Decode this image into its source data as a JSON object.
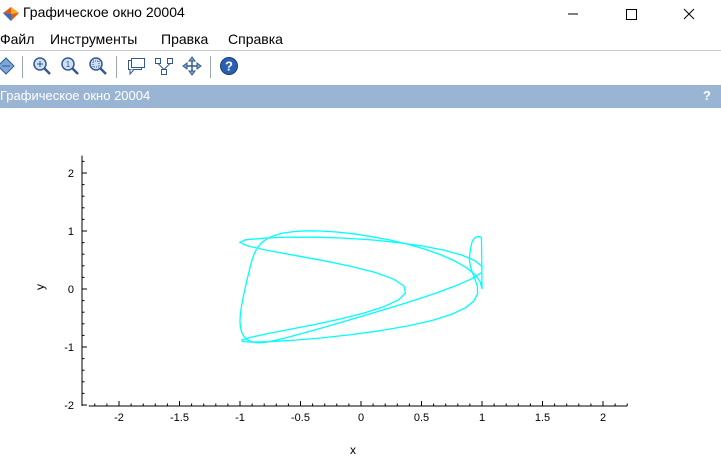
{
  "window": {
    "title": "Графическое окно 20004",
    "minimize_glyph": "—",
    "maximize_glyph": "□",
    "close_glyph": "✕"
  },
  "menu": {
    "items": [
      "Файл",
      "Инструменты",
      "Правка",
      "Справка"
    ]
  },
  "toolbar": {
    "buttons": [
      "rotate-icon",
      "zoom-in-icon",
      "zoom-out-icon",
      "zoom-area-icon",
      "datatip-icon",
      "edit-icon",
      "pan-icon",
      "help-icon"
    ]
  },
  "panel": {
    "title": "Графическое окно 20004",
    "help": "?"
  },
  "colors": {
    "curve": "#00ffff",
    "panel_bar": "#9ab5d3"
  },
  "chart_data": {
    "type": "line",
    "title": "",
    "xlabel": "x",
    "ylabel": "y",
    "xlim": [
      -2.2,
      2.2
    ],
    "ylim": [
      -2.1,
      2.3
    ],
    "xticks": [
      "-2",
      "-1.5",
      "-1",
      "-0.5",
      "0",
      "0.5",
      "1",
      "1.5",
      "2"
    ],
    "yticks": [
      "2",
      "1",
      "0",
      "-1",
      "-2"
    ],
    "grid": false,
    "series": [
      {
        "color": "#00ffff",
        "x": [
          1.0,
          0.985,
          0.941,
          0.871,
          0.776,
          0.661,
          0.53,
          0.387,
          0.238,
          0.087,
          -0.061,
          -0.203,
          -0.334,
          -0.453,
          -0.558,
          -0.647,
          -0.72,
          -0.778,
          -0.823,
          -0.856,
          -0.881,
          -0.899,
          -0.914,
          -0.928,
          -0.942,
          -0.956,
          -0.97,
          -0.982,
          -0.992,
          -0.998,
          -1.0,
          -0.996,
          -0.985,
          -0.968,
          -0.944,
          -0.913,
          -0.874,
          -0.826,
          -0.767,
          -0.694,
          -0.604,
          -0.496,
          -0.369,
          -0.225,
          -0.066,
          0.105,
          0.281,
          0.456,
          0.624,
          0.777,
          0.906,
          0.998,
          1.0,
          0.939,
          0.833,
          0.688,
          0.51,
          0.307,
          0.087,
          -0.141,
          -0.369,
          -0.587,
          -0.785,
          -0.955,
          -1.0,
          -0.941,
          -0.79,
          -0.575,
          -0.33,
          -0.09,
          0.118,
          0.27,
          0.356,
          0.368,
          0.309,
          0.187,
          0.016,
          -0.187,
          -0.403,
          -0.612,
          -0.79,
          -0.919,
          -0.985,
          -0.98,
          -0.904,
          -0.764,
          -0.572,
          -0.343,
          -0.096,
          0.152,
          0.384,
          0.586,
          0.748,
          0.864,
          0.933,
          0.963,
          0.962,
          0.943,
          0.921,
          0.903,
          0.896,
          0.899,
          0.905,
          0.912,
          0.919,
          0.931,
          0.948,
          0.967,
          0.985,
          0.996,
          1.0
        ],
        "y": [
          0.0,
          0.125,
          0.248,
          0.368,
          0.482,
          0.588,
          0.685,
          0.771,
          0.844,
          0.904,
          0.951,
          0.983,
          1.0,
          1.003,
          0.99,
          0.963,
          0.921,
          0.865,
          0.795,
          0.712,
          0.617,
          0.511,
          0.397,
          0.276,
          0.151,
          0.024,
          -0.104,
          -0.23,
          -0.352,
          -0.467,
          -0.573,
          -0.668,
          -0.75,
          -0.818,
          -0.87,
          -0.905,
          -0.924,
          -0.926,
          -0.911,
          -0.88,
          -0.833,
          -0.772,
          -0.698,
          -0.612,
          -0.516,
          -0.411,
          -0.3,
          -0.185,
          -0.067,
          0.051,
          0.168,
          0.282,
          0.39,
          0.492,
          0.585,
          0.669,
          0.741,
          0.8,
          0.846,
          0.877,
          0.893,
          0.894,
          0.879,
          0.849,
          0.804,
          0.745,
          0.673,
          0.59,
          0.496,
          0.394,
          0.284,
          0.169,
          0.05,
          -0.07,
          -0.19,
          -0.307,
          -0.42,
          -0.525,
          -0.621,
          -0.706,
          -0.778,
          -0.836,
          -0.879,
          -0.906,
          -0.916,
          -0.909,
          -0.886,
          -0.846,
          -0.791,
          -0.721,
          -0.638,
          -0.543,
          -0.438,
          -0.325,
          -0.206,
          -0.083,
          0.041,
          0.164,
          0.284,
          0.398,
          0.504,
          0.601,
          0.687,
          0.76,
          0.819,
          0.863,
          0.891,
          0.903,
          0.898,
          0.876,
          0.0
        ]
      }
    ]
  }
}
